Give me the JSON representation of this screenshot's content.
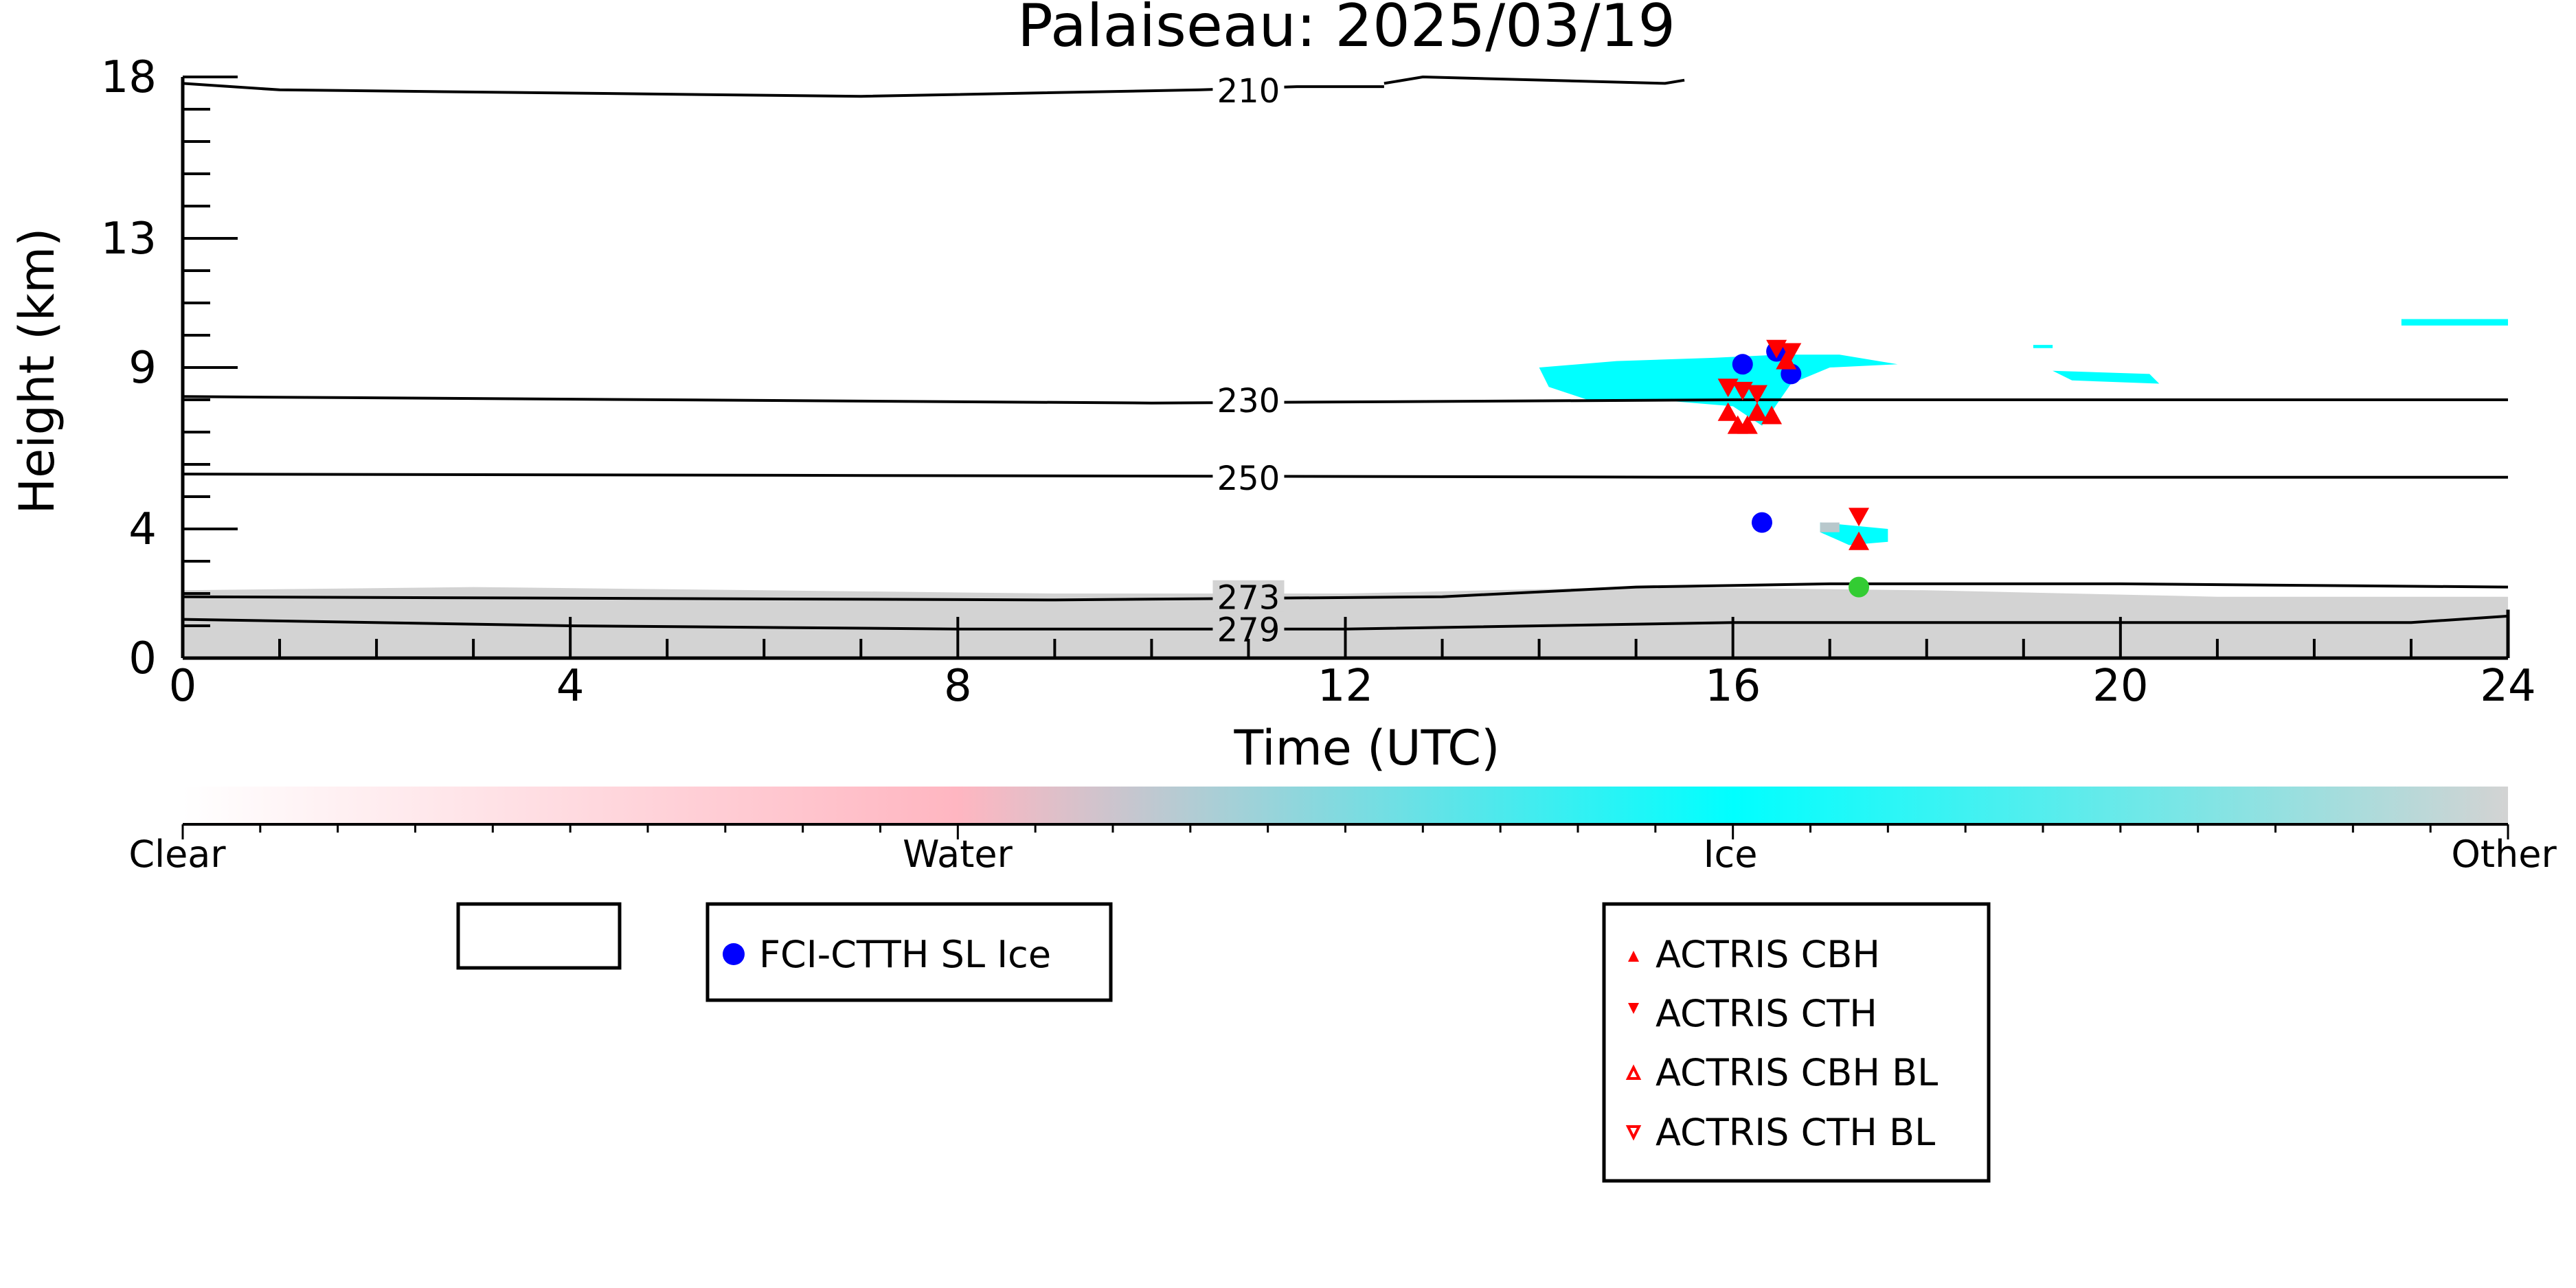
{
  "chart_data": {
    "type": "scatter",
    "title": "Palaiseau: 2025/03/19",
    "xlabel": "Time (UTC)",
    "ylabel": "Height (km)",
    "xlim": [
      0,
      24
    ],
    "ylim": [
      0,
      18
    ],
    "x_ticks": [
      0,
      4,
      8,
      12,
      16,
      20,
      24
    ],
    "y_ticks": [
      0,
      4,
      9,
      13,
      18
    ],
    "grid": false,
    "colorbar": {
      "labels": [
        "Clear",
        "Water",
        "Ice",
        "Other"
      ],
      "colors": [
        "#ffffff",
        "#ffb6c1",
        "#00ffff",
        "#d3d3d3"
      ]
    },
    "temperature_contours": [
      {
        "label": "210",
        "points": [
          [
            0,
            17.8
          ],
          [
            1,
            17.6
          ],
          [
            4,
            17.5
          ],
          [
            7,
            17.4
          ],
          [
            10.5,
            17.6
          ],
          [
            11.5,
            17.7
          ],
          [
            12.4,
            17.7
          ]
        ]
      },
      {
        "label": "210",
        "points": [
          [
            12.4,
            17.8
          ],
          [
            12.8,
            18.0
          ],
          [
            15.3,
            17.8
          ],
          [
            15.5,
            17.9
          ]
        ]
      },
      {
        "label": "230",
        "points": [
          [
            0,
            8.1
          ],
          [
            10,
            7.9
          ],
          [
            16,
            8.0
          ],
          [
            24,
            8.0
          ]
        ]
      },
      {
        "label": "250",
        "points": [
          [
            0,
            5.7
          ],
          [
            16,
            5.6
          ],
          [
            24,
            5.6
          ]
        ]
      },
      {
        "label": "273",
        "points": [
          [
            0,
            1.9
          ],
          [
            9,
            1.8
          ],
          [
            13,
            1.9
          ],
          [
            15,
            2.2
          ],
          [
            17,
            2.3
          ],
          [
            20,
            2.3
          ],
          [
            24,
            2.2
          ]
        ]
      },
      {
        "label": "279",
        "points": [
          [
            0,
            1.2
          ],
          [
            4,
            1.0
          ],
          [
            8,
            0.9
          ],
          [
            12,
            0.9
          ],
          [
            16,
            1.1
          ],
          [
            20,
            1.1
          ],
          [
            23,
            1.1
          ],
          [
            24,
            1.3
          ]
        ]
      }
    ],
    "cloud_regions": [
      {
        "class": "Other",
        "color": "#d3d3d3",
        "polygon": [
          [
            0,
            0
          ],
          [
            0,
            2.1
          ],
          [
            3,
            2.2
          ],
          [
            6,
            2.1
          ],
          [
            9,
            2.0
          ],
          [
            12,
            2.0
          ],
          [
            15,
            2.2
          ],
          [
            18,
            2.1
          ],
          [
            21,
            1.9
          ],
          [
            24,
            1.9
          ],
          [
            24,
            0
          ]
        ]
      },
      {
        "class": "Ice",
        "color": "#00ffff",
        "polygon": [
          [
            14.0,
            9.0
          ],
          [
            14.8,
            9.2
          ],
          [
            15.8,
            9.3
          ],
          [
            16.5,
            9.4
          ],
          [
            17.1,
            9.4
          ],
          [
            17.7,
            9.1
          ],
          [
            17.0,
            9.0
          ],
          [
            16.6,
            8.5
          ],
          [
            16.3,
            7.2
          ],
          [
            16.0,
            7.8
          ],
          [
            15.2,
            8.0
          ],
          [
            14.5,
            8.0
          ],
          [
            14.1,
            8.4
          ]
        ]
      },
      {
        "class": "Ice",
        "color": "#00ffff",
        "polygon": [
          [
            19.3,
            8.9
          ],
          [
            20.3,
            8.8
          ],
          [
            20.4,
            8.5
          ],
          [
            19.5,
            8.6
          ]
        ]
      },
      {
        "class": "Ice",
        "color": "#00ffff",
        "polygon": [
          [
            19.1,
            9.7
          ],
          [
            19.3,
            9.7
          ],
          [
            19.3,
            9.6
          ],
          [
            19.1,
            9.6
          ]
        ]
      },
      {
        "class": "Ice",
        "color": "#00ffff",
        "polygon": [
          [
            22.9,
            10.5
          ],
          [
            24.0,
            10.5
          ],
          [
            24.0,
            10.3
          ],
          [
            22.9,
            10.3
          ]
        ]
      },
      {
        "class": "Ice",
        "color": "#00ffff",
        "polygon": [
          [
            16.9,
            4.2
          ],
          [
            17.6,
            4.0
          ],
          [
            17.6,
            3.6
          ],
          [
            17.2,
            3.5
          ],
          [
            16.9,
            3.9
          ]
        ]
      },
      {
        "class": "Other",
        "color": "#b8c8cc",
        "polygon": [
          [
            16.9,
            4.2
          ],
          [
            17.1,
            4.2
          ],
          [
            17.1,
            3.9
          ],
          [
            16.9,
            3.9
          ]
        ]
      }
    ],
    "series": [
      {
        "name": "FCI-CTTH SL Ice",
        "marker": "circle",
        "color": "#0000ff",
        "x": [
          16.1,
          16.45,
          16.6,
          16.3
        ],
        "y": [
          9.1,
          9.5,
          8.8,
          4.2
        ]
      },
      {
        "name": "ACTRIS CBH",
        "marker": "triangle-up",
        "color": "#ff0000",
        "x": [
          15.95,
          16.05,
          16.15,
          16.25,
          16.4,
          16.55,
          17.3
        ],
        "y": [
          7.6,
          7.2,
          7.2,
          7.6,
          7.5,
          9.2,
          3.6
        ]
      },
      {
        "name": "ACTRIS CTH",
        "marker": "triangle-down",
        "color": "#ff0000",
        "x": [
          15.95,
          16.1,
          16.25,
          16.45,
          16.6,
          17.3
        ],
        "y": [
          8.4,
          8.3,
          8.2,
          9.6,
          9.5,
          4.4
        ]
      },
      {
        "name": "ACTRIS CBH BL",
        "marker": "triangle-up-open",
        "color": "#ff0000",
        "x": [],
        "y": []
      },
      {
        "name": "ACTRIS CTH BL",
        "marker": "triangle-down-open",
        "color": "#ff0000",
        "x": [],
        "y": []
      },
      {
        "name": "",
        "marker": "circle",
        "color": "#33cc33",
        "x": [
          17.3
        ],
        "y": [
          2.2
        ]
      }
    ]
  }
}
